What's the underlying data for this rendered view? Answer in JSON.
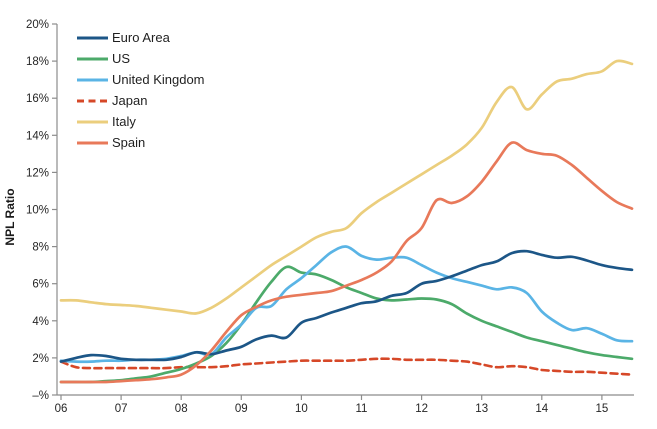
{
  "chart_data": {
    "type": "line",
    "title": "",
    "ylabel": "NPL Ratio",
    "xlabel": "",
    "grid": false,
    "legend_position": "top-left",
    "axis_color": "#8c8c8c",
    "tick_text_color": "#262626",
    "ylim": [
      0,
      20
    ],
    "y_ticks": [
      0,
      2,
      4,
      6,
      8,
      10,
      12,
      14,
      16,
      18,
      20
    ],
    "y_tick_labels": [
      "–%",
      "2%",
      "4%",
      "6%",
      "8%",
      "10%",
      "12%",
      "14%",
      "16%",
      "18%",
      "20%"
    ],
    "x_start_year": 2006,
    "x_step_years": 0.25,
    "x_ticks": [
      2006,
      2007,
      2008,
      2009,
      2010,
      2011,
      2012,
      2013,
      2014,
      2015
    ],
    "x_tick_labels": [
      "06",
      "07",
      "08",
      "09",
      "10",
      "11",
      "12",
      "13",
      "14",
      "15"
    ],
    "series": [
      {
        "name": "Euro Area",
        "color": "#1c5687",
        "dash": null,
        "values": [
          1.8,
          2.0,
          2.15,
          2.1,
          1.95,
          1.9,
          1.9,
          1.9,
          2.05,
          2.3,
          2.2,
          2.4,
          2.6,
          3.0,
          3.2,
          3.1,
          3.9,
          4.15,
          4.45,
          4.7,
          4.95,
          5.05,
          5.35,
          5.5,
          6.0,
          6.15,
          6.4,
          6.7,
          7.0,
          7.2,
          7.65,
          7.75,
          7.55,
          7.4,
          7.45,
          7.25,
          7.0,
          6.85,
          6.75
        ]
      },
      {
        "name": "US",
        "color": "#4caa6a",
        "dash": null,
        "values": [
          0.7,
          0.7,
          0.7,
          0.75,
          0.8,
          0.9,
          1.0,
          1.2,
          1.4,
          1.7,
          2.1,
          2.8,
          3.8,
          5.0,
          6.1,
          6.9,
          6.6,
          6.5,
          6.2,
          5.8,
          5.5,
          5.2,
          5.1,
          5.15,
          5.2,
          5.15,
          4.9,
          4.4,
          4.0,
          3.7,
          3.4,
          3.1,
          2.9,
          2.7,
          2.5,
          2.3,
          2.15,
          2.05,
          1.95
        ]
      },
      {
        "name": "United Kingdom",
        "color": "#5ab4e5",
        "dash": null,
        "values": [
          1.85,
          1.8,
          1.8,
          1.85,
          1.85,
          1.9,
          1.9,
          1.95,
          2.1,
          2.3,
          2.2,
          3.1,
          3.8,
          4.7,
          4.8,
          5.7,
          6.3,
          7.0,
          7.7,
          8.0,
          7.5,
          7.3,
          7.4,
          7.4,
          7.0,
          6.6,
          6.3,
          6.1,
          5.9,
          5.7,
          5.8,
          5.5,
          4.5,
          3.9,
          3.5,
          3.6,
          3.3,
          2.95,
          2.9
        ]
      },
      {
        "name": "Japan",
        "color": "#d64828",
        "dash": [
          7,
          4.5
        ],
        "values": [
          1.8,
          1.5,
          1.45,
          1.45,
          1.45,
          1.45,
          1.45,
          1.45,
          1.5,
          1.5,
          1.5,
          1.55,
          1.65,
          1.7,
          1.75,
          1.8,
          1.85,
          1.85,
          1.85,
          1.85,
          1.9,
          1.95,
          1.95,
          1.9,
          1.9,
          1.9,
          1.85,
          1.8,
          1.65,
          1.5,
          1.55,
          1.5,
          1.35,
          1.3,
          1.25,
          1.25,
          1.2,
          1.15,
          1.1
        ]
      },
      {
        "name": "Italy",
        "color": "#ebce7d",
        "dash": null,
        "values": [
          5.1,
          5.1,
          5.0,
          4.9,
          4.85,
          4.8,
          4.7,
          4.6,
          4.5,
          4.4,
          4.7,
          5.2,
          5.8,
          6.4,
          7.0,
          7.5,
          8.0,
          8.5,
          8.8,
          9.0,
          9.8,
          10.4,
          10.9,
          11.4,
          11.9,
          12.4,
          12.9,
          13.5,
          14.4,
          15.8,
          16.6,
          15.4,
          16.2,
          16.9,
          17.05,
          17.3,
          17.45,
          18.0,
          17.85
        ]
      },
      {
        "name": "Spain",
        "color": "#e8795a",
        "dash": null,
        "values": [
          0.7,
          0.7,
          0.7,
          0.7,
          0.75,
          0.8,
          0.85,
          0.95,
          1.1,
          1.6,
          2.4,
          3.4,
          4.3,
          4.75,
          5.1,
          5.3,
          5.4,
          5.5,
          5.6,
          5.9,
          6.2,
          6.6,
          7.2,
          8.3,
          9.0,
          10.5,
          10.35,
          10.7,
          11.5,
          12.6,
          13.6,
          13.2,
          13.0,
          12.9,
          12.4,
          11.7,
          11.0,
          10.4,
          10.05
        ]
      }
    ]
  }
}
